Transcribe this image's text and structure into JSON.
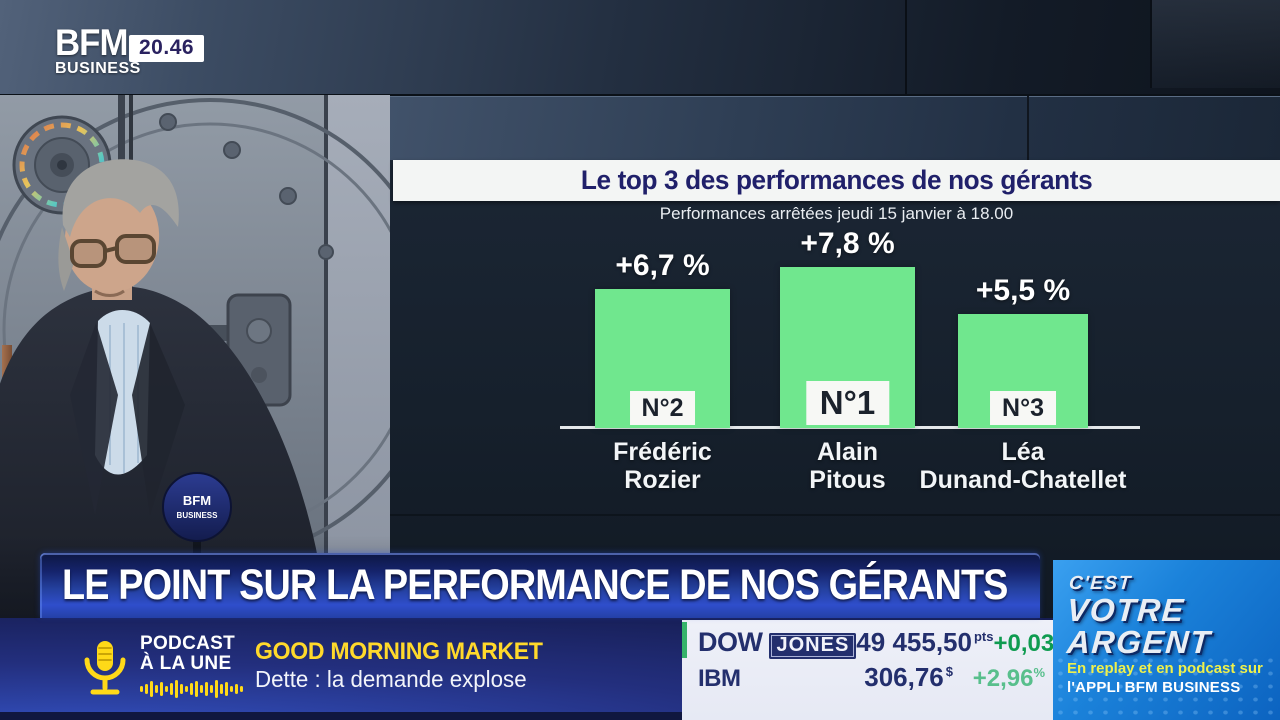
{
  "channel": {
    "name_top": "BFM",
    "name_bottom": "BUSINESS",
    "time": "20.46"
  },
  "chart_data": {
    "type": "bar",
    "title": "Le top 3 des performances de nos gérants",
    "subtitle": "Performances arrêtées jeudi 15 janvier à 18.00",
    "categories": [
      "Frédéric Rozier",
      "Alain Pitous",
      "Léa Dunand-Chatellet"
    ],
    "category_lines": [
      [
        "Frédéric",
        "Rozier"
      ],
      [
        "Alain",
        "Pitous"
      ],
      [
        "Léa",
        "Dunand-Chatellet"
      ]
    ],
    "values": [
      6.7,
      7.8,
      5.5
    ],
    "value_labels": [
      "+6,7 %",
      "+7,8 %",
      "+5,5 %"
    ],
    "rank_labels": [
      "N°2",
      "N°1",
      "N°3"
    ],
    "bar_color": "#70e78e",
    "ylim": [
      0,
      8.5
    ],
    "grid": false,
    "legend": "none"
  },
  "banner": {
    "headline": "LE POINT SUR LA PERFORMANCE DE NOS GÉRANTS"
  },
  "podcast": {
    "kicker_top": "PODCAST",
    "kicker_bottom": "À LA UNE",
    "show_title": "GOOD MORNING MARKET",
    "episode_title": "Dette : la demande explose"
  },
  "ticker": {
    "rows": [
      {
        "name": "DOW",
        "name_boxed": "JONES",
        "value": "49 455,50",
        "unit": "pts",
        "change": "+0,03",
        "change_unit": "%"
      },
      {
        "name": "IBM",
        "name_boxed": "",
        "value": "306,76",
        "unit": "$",
        "change": "+2,96",
        "change_unit": "%"
      }
    ]
  },
  "program": {
    "line1": "C'EST",
    "line2": "VOTRE",
    "line3": "ARGENT",
    "replay_text": "En replay et en podcast sur",
    "app_text": "l'APPLI BFM BUSINESS"
  },
  "mic": {
    "line1": "BFM",
    "line2": "BUSINESS"
  },
  "colors": {
    "bar_green": "#70e78e",
    "ticker_green": "#0f9b50",
    "accent_yellow": "#ffd92b",
    "banner_blue": "#2f4ecb",
    "panel_blue": "#1b82da"
  }
}
